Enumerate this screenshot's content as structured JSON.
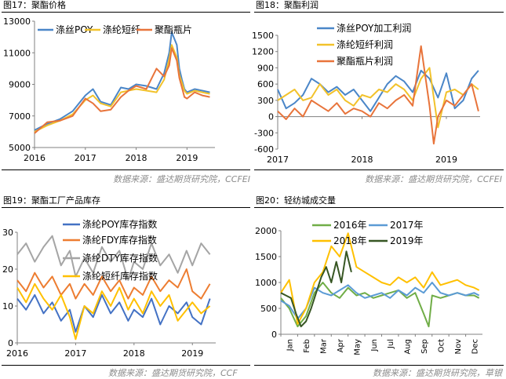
{
  "panels": [
    {
      "title": "图17：聚酯价格",
      "source": "数据来源：盛达期货研究院，CCFEI"
    },
    {
      "title": "图18：聚酯利润",
      "source": "数据来源：盛达期货研究院，CCFEI"
    },
    {
      "title": "图19：聚酯工厂产品库存",
      "source": "数据来源：盛达期货研究院，CCF"
    },
    {
      "title": "图20：轻纺城成交量",
      "source": "数据来源：盛达期货研究院，草银"
    }
  ],
  "chart_data": [
    {
      "type": "line",
      "ylim": [
        5000,
        13000
      ],
      "yticks": [
        "5000",
        "7000",
        "9000",
        "11000",
        "13000"
      ],
      "xlim": [
        2016,
        2019.55
      ],
      "xticks": [
        "2016",
        "2017",
        "2018",
        "2019"
      ],
      "grid": false,
      "legend": "top",
      "series": [
        {
          "name": "涤丝POY",
          "color": "#4a86c8",
          "x": [
            2016.0,
            2016.25,
            2016.5,
            2016.75,
            2017.0,
            2017.15,
            2017.3,
            2017.5,
            2017.7,
            2017.85,
            2018.0,
            2018.2,
            2018.4,
            2018.55,
            2018.65,
            2018.7,
            2018.8,
            2018.85,
            2018.9,
            2018.95,
            2019.0,
            2019.15,
            2019.3,
            2019.45
          ],
          "y": [
            6100,
            6500,
            6800,
            7300,
            8300,
            8700,
            7900,
            7700,
            8800,
            8700,
            9000,
            8900,
            8700,
            9700,
            11000,
            12300,
            11500,
            10000,
            9300,
            8700,
            8500,
            8700,
            8600,
            8500
          ]
        },
        {
          "name": "涤纶短纤",
          "color": "#f2c22b",
          "x": [
            2016.0,
            2016.25,
            2016.5,
            2016.75,
            2017.0,
            2017.15,
            2017.3,
            2017.5,
            2017.7,
            2017.85,
            2018.0,
            2018.2,
            2018.4,
            2018.55,
            2018.65,
            2018.7,
            2018.8,
            2018.85,
            2018.9,
            2018.95,
            2019.0,
            2019.15,
            2019.3,
            2019.45
          ],
          "y": [
            6000,
            6400,
            6700,
            7100,
            8000,
            8300,
            7800,
            7600,
            8500,
            8600,
            8700,
            8600,
            8500,
            9300,
            10600,
            11500,
            10700,
            9600,
            9100,
            8600,
            8400,
            8600,
            8500,
            8400
          ]
        },
        {
          "name": "聚酯瓶片",
          "color": "#e8743b",
          "x": [
            2016.0,
            2016.25,
            2016.5,
            2016.75,
            2017.0,
            2017.15,
            2017.3,
            2017.5,
            2017.7,
            2017.85,
            2018.0,
            2018.2,
            2018.4,
            2018.55,
            2018.65,
            2018.7,
            2018.8,
            2018.85,
            2018.9,
            2018.95,
            2019.0,
            2019.15,
            2019.3,
            2019.45
          ],
          "y": [
            5900,
            6600,
            6700,
            7000,
            8100,
            7800,
            7300,
            7400,
            8200,
            8600,
            8900,
            8700,
            10000,
            9500,
            10200,
            11300,
            10500,
            9400,
            8800,
            8200,
            8100,
            8500,
            8300,
            8200
          ]
        }
      ]
    },
    {
      "type": "line",
      "ylim": [
        -600,
        1500
      ],
      "yticks": [
        "-600",
        "-300",
        "0",
        "300",
        "600",
        "900",
        "1200",
        "1500"
      ],
      "xlim": [
        2017,
        2019.4
      ],
      "xticks": [
        "2017",
        "2018",
        "2019"
      ],
      "grid": false,
      "legend": "top",
      "series": [
        {
          "name": "涤丝POY加工利润",
          "color": "#4a86c8",
          "x": [
            2017.0,
            2017.1,
            2017.2,
            2017.3,
            2017.4,
            2017.5,
            2017.6,
            2017.7,
            2017.8,
            2017.9,
            2018.0,
            2018.1,
            2018.2,
            2018.3,
            2018.4,
            2018.5,
            2018.6,
            2018.7,
            2018.8,
            2018.9,
            2019.0,
            2019.1,
            2019.2,
            2019.3,
            2019.38
          ],
          "y": [
            500,
            150,
            250,
            400,
            700,
            600,
            450,
            550,
            400,
            500,
            300,
            100,
            350,
            600,
            750,
            650,
            450,
            850,
            700,
            350,
            800,
            150,
            300,
            700,
            850
          ]
        },
        {
          "name": "涤纶短纤利润",
          "color": "#f2c22b",
          "x": [
            2017.0,
            2017.1,
            2017.2,
            2017.3,
            2017.4,
            2017.5,
            2017.6,
            2017.7,
            2017.8,
            2017.9,
            2018.0,
            2018.1,
            2018.2,
            2018.3,
            2018.4,
            2018.5,
            2018.6,
            2018.7,
            2018.8,
            2018.9,
            2019.0,
            2019.1,
            2019.2,
            2019.3,
            2019.38
          ],
          "y": [
            300,
            400,
            500,
            300,
            350,
            600,
            400,
            500,
            300,
            200,
            400,
            350,
            500,
            450,
            600,
            500,
            300,
            700,
            900,
            -200,
            450,
            500,
            400,
            600,
            500
          ]
        },
        {
          "name": "聚酯瓶片利润",
          "color": "#e8743b",
          "x": [
            2017.0,
            2017.1,
            2017.2,
            2017.3,
            2017.4,
            2017.5,
            2017.6,
            2017.7,
            2017.8,
            2017.9,
            2018.0,
            2018.1,
            2018.2,
            2018.3,
            2018.4,
            2018.5,
            2018.6,
            2018.7,
            2018.8,
            2018.85,
            2018.9,
            2019.0,
            2019.1,
            2019.2,
            2019.3,
            2019.38
          ],
          "y": [
            100,
            -50,
            150,
            0,
            300,
            200,
            100,
            250,
            50,
            150,
            100,
            0,
            250,
            150,
            300,
            400,
            200,
            1300,
            200,
            -500,
            0,
            300,
            200,
            400,
            600,
            100
          ]
        }
      ]
    },
    {
      "type": "line",
      "ylim": [
        0,
        30
      ],
      "yticks": [
        "0",
        "10",
        "20",
        "30"
      ],
      "xlim": [
        2016,
        2019.4
      ],
      "xticks": [
        "2016",
        "2017",
        "2018",
        "2019"
      ],
      "grid": false,
      "legend": "top",
      "series": [
        {
          "name": "涤纶POY库存指数",
          "color": "#4472c4",
          "x": [
            2016.0,
            2016.15,
            2016.3,
            2016.45,
            2016.6,
            2016.75,
            2016.9,
            2017.0,
            2017.15,
            2017.3,
            2017.45,
            2017.6,
            2017.75,
            2017.9,
            2018.0,
            2018.15,
            2018.3,
            2018.45,
            2018.6,
            2018.75,
            2018.9,
            2019.0,
            2019.15,
            2019.3
          ],
          "y": [
            12,
            9,
            13,
            8,
            11,
            6,
            9,
            3,
            10,
            7,
            13,
            8,
            11,
            6,
            9,
            7,
            12,
            5,
            10,
            8,
            11,
            7,
            5,
            12
          ]
        },
        {
          "name": "涤纶FDY库存指数",
          "color": "#ed7d31",
          "x": [
            2016.0,
            2016.15,
            2016.3,
            2016.45,
            2016.6,
            2016.75,
            2016.9,
            2017.0,
            2017.15,
            2017.3,
            2017.45,
            2017.6,
            2017.75,
            2017.9,
            2018.0,
            2018.15,
            2018.3,
            2018.45,
            2018.6,
            2018.75,
            2018.9,
            2019.0,
            2019.15,
            2019.3
          ],
          "y": [
            17,
            14,
            19,
            15,
            18,
            13,
            16,
            12,
            16,
            13,
            18,
            14,
            17,
            12,
            15,
            13,
            18,
            14,
            17,
            15,
            20,
            14,
            12,
            16
          ]
        },
        {
          "name": "涤纶DTY库存指数",
          "color": "#a5a5a5",
          "x": [
            2016.0,
            2016.15,
            2016.3,
            2016.45,
            2016.6,
            2016.75,
            2016.9,
            2017.0,
            2017.15,
            2017.3,
            2017.45,
            2017.6,
            2017.75,
            2017.9,
            2018.0,
            2018.15,
            2018.3,
            2018.45,
            2018.6,
            2018.75,
            2018.9,
            2019.0,
            2019.15,
            2019.3
          ],
          "y": [
            24,
            27,
            22,
            26,
            29,
            21,
            25,
            18,
            23,
            19,
            26,
            22,
            25,
            17,
            22,
            20,
            27,
            21,
            24,
            19,
            25,
            21,
            27,
            24
          ]
        },
        {
          "name": "涤纶短纤库存指数",
          "color": "#ffc000",
          "x": [
            2016.0,
            2016.15,
            2016.3,
            2016.45,
            2016.6,
            2016.75,
            2016.9,
            2017.0,
            2017.15,
            2017.3,
            2017.45,
            2017.6,
            2017.75,
            2017.9,
            2018.0,
            2018.15,
            2018.3,
            2018.45,
            2018.6,
            2018.75,
            2018.9,
            2019.0,
            2019.15,
            2019.3
          ],
          "y": [
            15,
            11,
            16,
            12,
            9,
            13,
            7,
            1,
            10,
            8,
            14,
            10,
            15,
            9,
            12,
            8,
            14,
            10,
            13,
            6,
            9,
            11,
            8,
            10
          ]
        }
      ]
    },
    {
      "type": "line",
      "ylim": [
        0,
        2000
      ],
      "yticks": [
        "0",
        "500",
        "1000",
        "1500",
        "2000"
      ],
      "xlim": [
        0,
        12
      ],
      "xticks": [
        "Jan",
        "Feb",
        "Mar",
        "Apr",
        "May",
        "Jun",
        "Jul",
        "Aug",
        "Sep",
        "Oct",
        "Nov",
        "Dec"
      ],
      "grid": false,
      "legend": "top",
      "series": [
        {
          "name": "2016年",
          "color": "#70ad47",
          "x": [
            0.0,
            0.5,
            1.0,
            1.5,
            2.0,
            2.5,
            3.0,
            3.5,
            4.0,
            4.5,
            5.0,
            5.5,
            6.0,
            6.5,
            7.0,
            7.5,
            8.0,
            8.5,
            8.8,
            9.0,
            9.5,
            10.0,
            10.5,
            11.0,
            11.5,
            11.8
          ],
          "y": [
            700,
            500,
            150,
            350,
            800,
            1000,
            800,
            700,
            900,
            750,
            800,
            700,
            750,
            800,
            850,
            700,
            800,
            400,
            150,
            750,
            700,
            750,
            800,
            750,
            750,
            700
          ]
        },
        {
          "name": "2017年",
          "color": "#5b9bd5",
          "x": [
            0.0,
            0.5,
            1.0,
            1.5,
            2.0,
            2.5,
            3.0,
            3.5,
            4.0,
            4.5,
            5.0,
            5.5,
            6.0,
            6.5,
            7.0,
            7.5,
            8.0,
            8.5,
            9.0,
            9.5,
            10.0,
            10.5,
            11.0,
            11.5,
            11.8
          ],
          "y": [
            650,
            550,
            300,
            500,
            900,
            800,
            750,
            850,
            950,
            800,
            700,
            750,
            800,
            700,
            850,
            750,
            900,
            800,
            1000,
            800,
            750,
            800,
            750,
            800,
            750
          ]
        },
        {
          "name": "2018年",
          "color": "#ffc000",
          "x": [
            0.0,
            0.5,
            1.0,
            1.5,
            2.0,
            2.5,
            3.0,
            3.5,
            4.0,
            4.5,
            5.0,
            5.5,
            6.0,
            6.5,
            7.0,
            7.5,
            8.0,
            8.5,
            9.0,
            9.5,
            10.0,
            10.5,
            11.0,
            11.5,
            11.8
          ],
          "y": [
            800,
            1050,
            200,
            500,
            1000,
            1200,
            1700,
            1500,
            1950,
            1300,
            1200,
            1100,
            1000,
            950,
            1100,
            1000,
            1100,
            900,
            1200,
            950,
            1000,
            1050,
            950,
            900,
            850
          ]
        },
        {
          "name": "2019年",
          "color": "#375623",
          "x": [
            0.0,
            0.3,
            0.6,
            0.9,
            1.2,
            1.5,
            1.8,
            2.1,
            2.4,
            2.7,
            3.0,
            3.3,
            3.6,
            3.9,
            4.2
          ],
          "y": [
            800,
            750,
            700,
            400,
            150,
            250,
            500,
            800,
            1100,
            1300,
            1000,
            1400,
            1000,
            1600,
            1200
          ]
        }
      ]
    }
  ]
}
